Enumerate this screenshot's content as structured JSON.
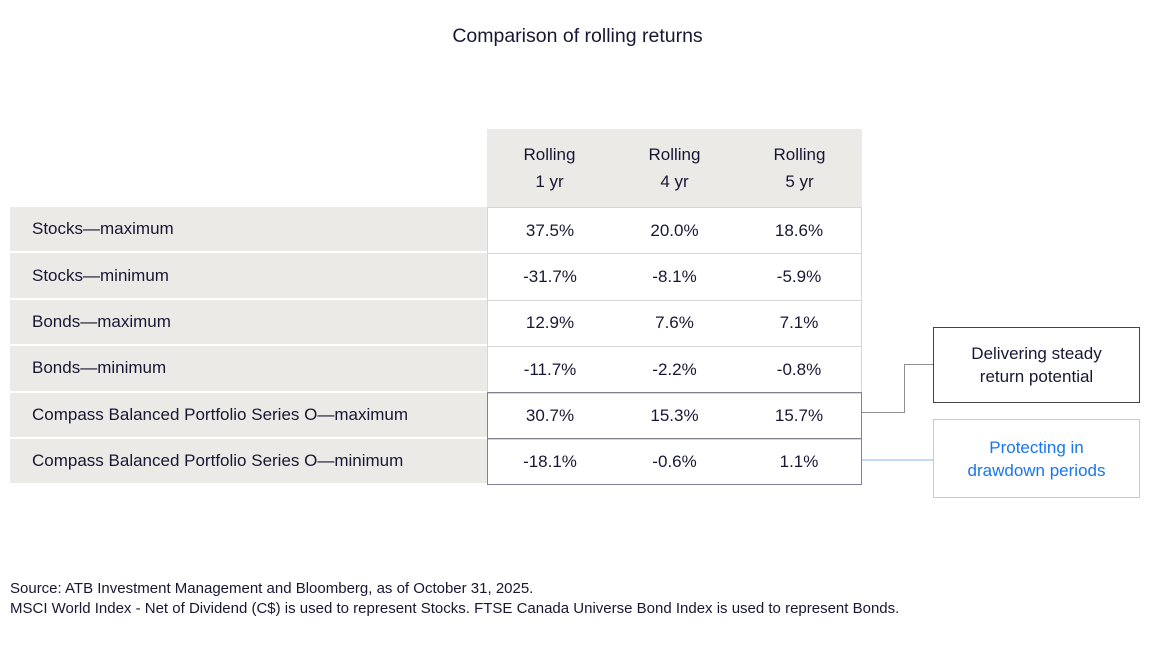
{
  "title": "Comparison of rolling returns",
  "table": {
    "header": [
      {
        "line1": "Rolling",
        "line2": "1 yr"
      },
      {
        "line1": "Rolling",
        "line2": "4 yr"
      },
      {
        "line1": "Rolling",
        "line2": "5 yr"
      }
    ],
    "rows": [
      {
        "label": "Stocks—maximum",
        "values": [
          "37.5%",
          "20.0%",
          "18.6%"
        ]
      },
      {
        "label": "Stocks—minimum",
        "values": [
          "-31.7%",
          "-8.1%",
          "-5.9%"
        ]
      },
      {
        "label": "Bonds—maximum",
        "values": [
          "12.9%",
          "7.6%",
          "7.1%"
        ]
      },
      {
        "label": "Bonds—minimum",
        "values": [
          "-11.7%",
          "-2.2%",
          "-0.8%"
        ]
      },
      {
        "label": "Compass Balanced Portfolio Series O—maximum",
        "values": [
          "30.7%",
          "15.3%",
          "15.7%"
        ]
      },
      {
        "label": "Compass Balanced Portfolio Series O—minimum",
        "values": [
          "-18.1%",
          "-0.6%",
          "1.1%"
        ]
      }
    ]
  },
  "callouts": {
    "steady": {
      "line1": "Delivering steady",
      "line2": "return potential"
    },
    "drawdown": {
      "line1": "Protecting in",
      "line2": "drawdown periods"
    }
  },
  "source": {
    "line1": "Source: ATB Investment Management and Bloomberg, as of October 31, 2025.",
    "line2": "MSCI World Index - Net of Dividend (C$) is used to represent Stocks. FTSE Canada Universe Bond Index is used to represent Bonds."
  },
  "colors": {
    "text_navy": "#181733",
    "cell_gray": "#ECEAE7",
    "light_border": "#D8D6D3",
    "highlight_border": "#82828E",
    "accent_blue_text": "#1976F0",
    "accent_blue_border": "#ACD1F9",
    "connector_gray": "#8F8F99",
    "connector_blue": "#C2DAF8"
  },
  "chart_data": {
    "type": "table",
    "title": "Comparison of rolling returns",
    "columns": [
      "Rolling 1 yr",
      "Rolling 4 yr",
      "Rolling 5 yr"
    ],
    "rows": [
      {
        "label": "Stocks—maximum",
        "values": [
          37.5,
          20.0,
          18.6
        ]
      },
      {
        "label": "Stocks—minimum",
        "values": [
          -31.7,
          -8.1,
          -5.9
        ]
      },
      {
        "label": "Bonds—maximum",
        "values": [
          12.9,
          7.6,
          7.1
        ]
      },
      {
        "label": "Bonds—minimum",
        "values": [
          -11.7,
          -2.2,
          -0.8
        ]
      },
      {
        "label": "Compass Balanced Portfolio Series O—maximum",
        "values": [
          30.7,
          15.3,
          15.7
        ]
      },
      {
        "label": "Compass Balanced Portfolio Series O—minimum",
        "values": [
          -18.1,
          -0.6,
          1.1
        ]
      }
    ],
    "units": "%",
    "annotations": [
      {
        "text": "Delivering steady return potential",
        "target_row": "Compass Balanced Portfolio Series O—maximum"
      },
      {
        "text": "Protecting in drawdown periods",
        "target_row": "Compass Balanced Portfolio Series O—minimum"
      }
    ],
    "source": "Source: ATB Investment Management and Bloomberg, as of October 31, 2025. MSCI World Index - Net of Dividend (C$) is used to represent Stocks. FTSE Canada Universe Bond Index is used to represent Bonds."
  }
}
